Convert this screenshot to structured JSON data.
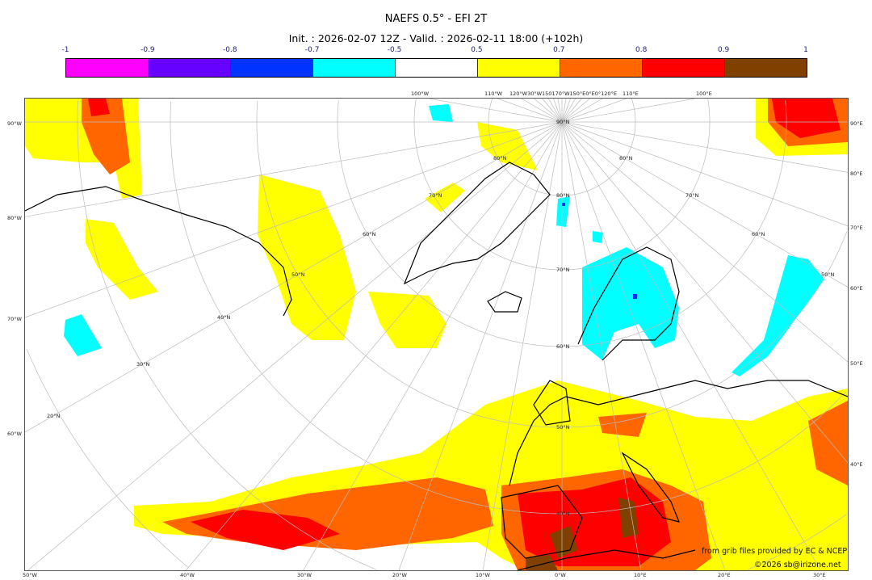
{
  "title": "NAEFS 0.5° - EFI 2T",
  "subtitle": "Init. : 2026-02-07 12Z - Valid. : 2026-02-11 18:00 (+102h)",
  "colorbar": {
    "ticks": [
      "-1",
      "-0.9",
      "-0.8",
      "-0.7",
      "-0.5",
      "0.5",
      "0.7",
      "0.8",
      "0.9",
      "1"
    ],
    "colors": [
      "#ff00ff",
      "#6600ff",
      "#0033ff",
      "#00ffff",
      "#ffffff",
      "#ffff00",
      "#ff6600",
      "#ff0000",
      "#804000"
    ]
  },
  "axes": {
    "left": [
      "90°W",
      "80°W",
      "70°W",
      "60°W"
    ],
    "right": [
      "90°E",
      "80°E",
      "70°E",
      "60°E",
      "50°E",
      "40°E"
    ],
    "bottom": [
      "50°W",
      "40°W",
      "30°W",
      "20°W",
      "10°W",
      "0°W",
      "10°E",
      "20°E",
      "30°E"
    ],
    "top": [
      "100°W",
      "110°W",
      "120°W30°W150170°W150°E0°E0°120°E",
      "110°E",
      "100°E"
    ]
  },
  "grid_labels": {
    "center": [
      "90°N",
      "80°N",
      "70°N",
      "60°N",
      "50°N",
      "40°N"
    ],
    "left": [
      "80°N",
      "70°N",
      "60°N",
      "50°N",
      "40°N",
      "30°N",
      "20°N"
    ],
    "right": [
      "80°N",
      "70°N",
      "60°N",
      "50°N"
    ]
  },
  "credits": [
    "from grib files provided by EC & NCEP",
    "©2026 sb@irizone.net"
  ]
}
